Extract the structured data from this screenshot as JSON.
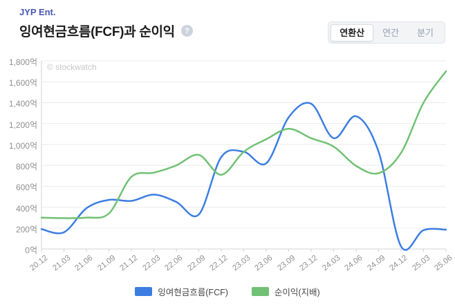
{
  "header": {
    "company": "JYP Ent.",
    "title": "잉여현금흐름(FCF)과 순이익",
    "help_glyph": "?"
  },
  "tabs": [
    {
      "label": "연환산",
      "active": true
    },
    {
      "label": "연간",
      "active": false
    },
    {
      "label": "분기",
      "active": false
    }
  ],
  "watermark": "© stockwatch",
  "chart_data": {
    "type": "line",
    "smooth": true,
    "grid": true,
    "legend_position": "bottom",
    "categories": [
      "20.12",
      "21.03",
      "21.06",
      "21.09",
      "21.12",
      "22.03",
      "22.06",
      "22.09",
      "22.12",
      "23.03",
      "23.06",
      "23.09",
      "23.12",
      "24.03",
      "24.06",
      "24.09",
      "24.12",
      "25.03",
      "25.06"
    ],
    "series": [
      {
        "name": "잉여현금흐름(FCF)",
        "color": "#3c7de2",
        "values": [
          190,
          160,
          390,
          470,
          460,
          520,
          450,
          330,
          880,
          930,
          820,
          1260,
          1390,
          1060,
          1270,
          930,
          25,
          180,
          185
        ]
      },
      {
        "name": "순이익(지배)",
        "color": "#70c173",
        "values": [
          300,
          295,
          300,
          340,
          690,
          730,
          800,
          900,
          710,
          930,
          1050,
          1150,
          1060,
          980,
          795,
          725,
          920,
          1400,
          1700
        ]
      }
    ],
    "ylim": [
      0,
      1800
    ],
    "ytick_step": 200,
    "ytick_labels": [
      "0억",
      "200억",
      "400억",
      "600억",
      "800억",
      "1,000억",
      "1,200억",
      "1,400억",
      "1,600억",
      "1,800억"
    ],
    "xlabel": "",
    "ylabel": ""
  },
  "colors": {
    "accent_blue": "#3c7de2",
    "accent_green": "#70c173",
    "brand": "#4757b5",
    "grid": "#ebebeb",
    "axis": "#d2d2d2",
    "axis_label": "#8f8f8f"
  }
}
